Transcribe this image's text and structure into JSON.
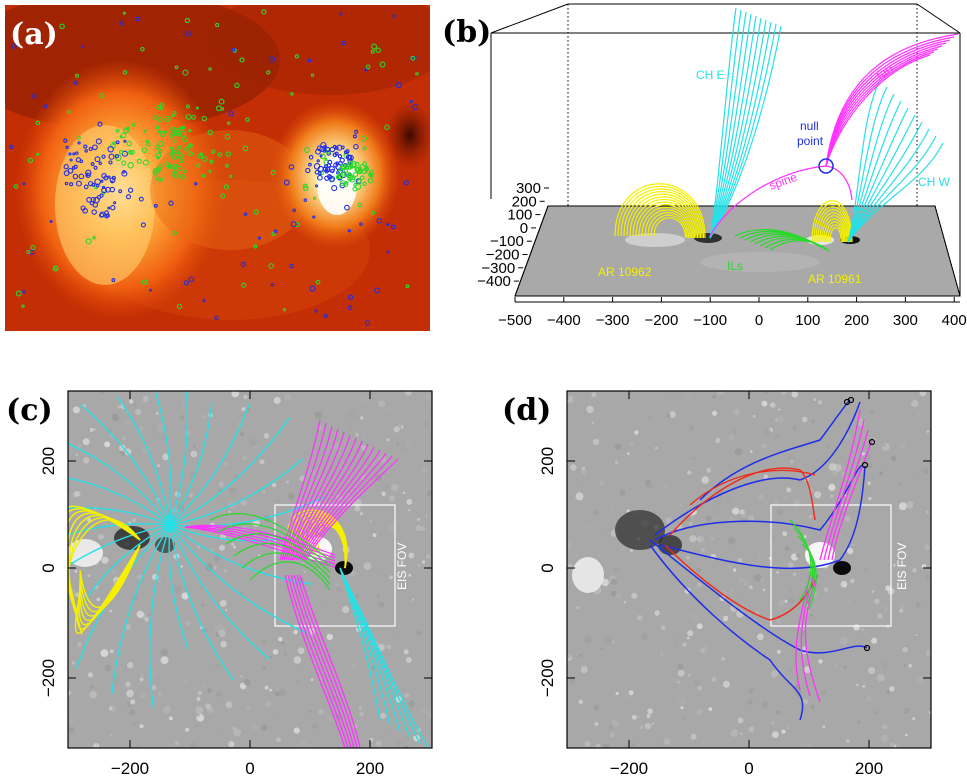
{
  "panels": {
    "a": {
      "label": "(a)"
    },
    "b": {
      "label": "(b)",
      "annotations": {
        "ch_e": "CH E",
        "ch_w": "CH W",
        "fan": "fan",
        "spine": "spine",
        "null_point_1": "null",
        "null_point_2": "point",
        "ils": "ILs",
        "ar_10962": "AR 10962",
        "ar_10961": "AR 10961"
      },
      "z_ticks": [
        "300",
        "200",
        "100",
        "0",
        "−100",
        "−200",
        "−300",
        "−400"
      ],
      "x_ticks": [
        "−500",
        "−400",
        "−300",
        "−200",
        "−100",
        "0",
        "100",
        "200",
        "300",
        "400"
      ]
    },
    "c": {
      "label": "(c)",
      "fov_label": "EIS FOV",
      "x_ticks": [
        "−200",
        "0",
        "200"
      ],
      "y_ticks": [
        "200",
        "0",
        "−200"
      ]
    },
    "d": {
      "label": "(d)",
      "fov_label": "EIS FOV",
      "x_ticks": [
        "−200",
        "0",
        "200"
      ],
      "y_ticks": [
        "200",
        "0",
        "−200"
      ]
    }
  },
  "colors": {
    "yellow": "#f4f000",
    "cyan": "#26e0e6",
    "magenta": "#ff33ff",
    "green": "#29d92b",
    "blue": "#1f2ee8",
    "red": "#ee2a1c"
  }
}
